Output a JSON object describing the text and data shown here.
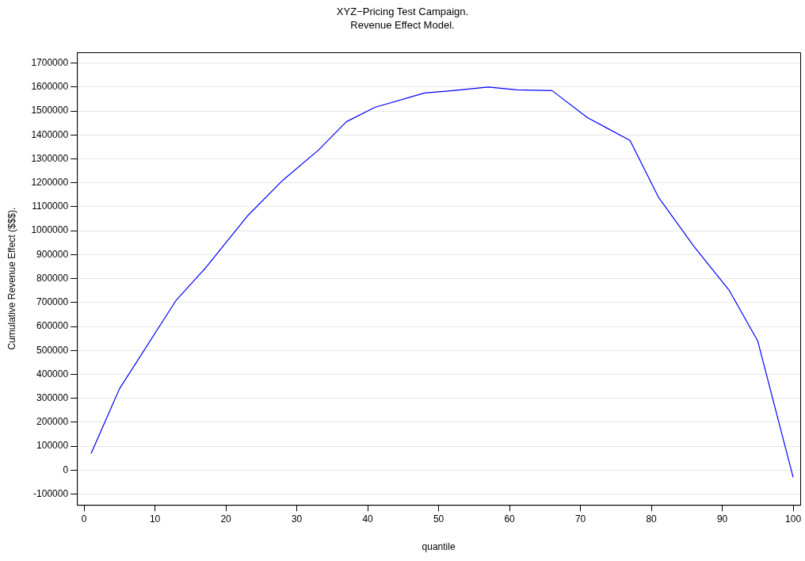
{
  "chart_data": {
    "type": "line",
    "title": "XYZ−Pricing Test Campaign.",
    "subtitle": "Revenue Effect Model.",
    "xlabel": "quantile",
    "ylabel": "Cumulative Revenue Effect ($$$).",
    "x": [
      1,
      5,
      13,
      17,
      23,
      28,
      33,
      37,
      41,
      48,
      52,
      57,
      61,
      66,
      71,
      77,
      81,
      86,
      91,
      95,
      100
    ],
    "series": [
      {
        "color": "#0000ff",
        "values": [
          70000,
          340000,
          710000,
          840000,
          1060000,
          1210000,
          1335000,
          1455000,
          1515000,
          1575000,
          1585000,
          1600000,
          1588000,
          1585000,
          1472000,
          1377000,
          1140000,
          935000,
          750000,
          540000,
          -30000
        ]
      }
    ],
    "xlim": [
      -1,
      101
    ],
    "xticks": [
      0,
      10,
      20,
      30,
      40,
      50,
      60,
      70,
      80,
      90,
      100
    ],
    "ylim": [
      -145000,
      1745000
    ],
    "yticks": [
      -100000,
      0,
      100000,
      200000,
      300000,
      400000,
      500000,
      600000,
      700000,
      800000,
      900000,
      1000000,
      1100000,
      1200000,
      1300000,
      1400000,
      1500000,
      1600000,
      1700000
    ],
    "grid": "y",
    "legend": false,
    "marker": "none",
    "line_style": "solid"
  }
}
